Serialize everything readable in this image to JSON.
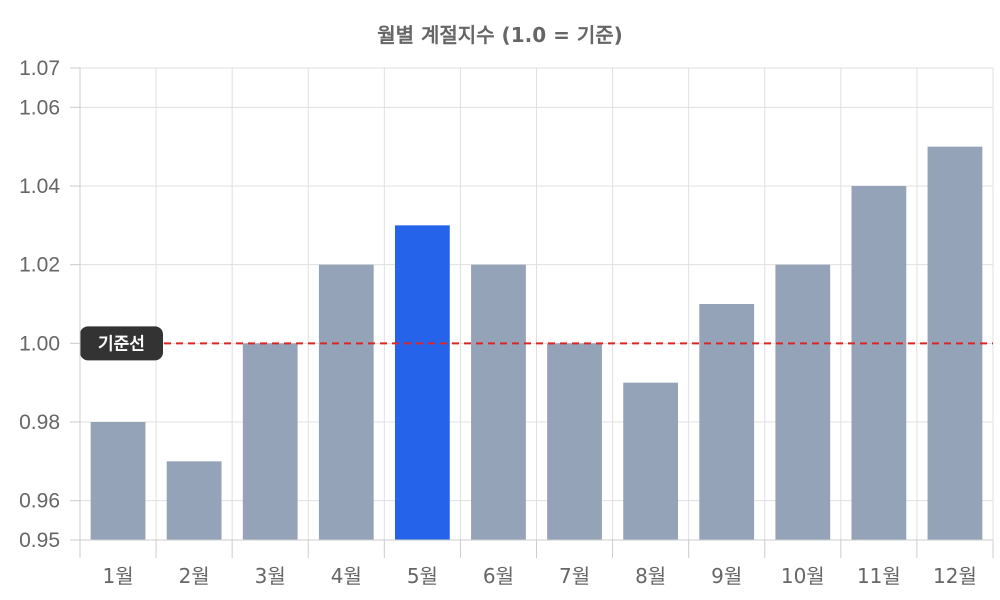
{
  "chart_data": {
    "type": "bar",
    "title": "월별 계절지수 (1.0 = 기준)",
    "xlabel": "",
    "ylabel": "",
    "categories": [
      "1월",
      "2월",
      "3월",
      "4월",
      "5월",
      "6월",
      "7월",
      "8월",
      "9월",
      "10월",
      "11월",
      "12월"
    ],
    "values": [
      0.98,
      0.97,
      1.0,
      1.02,
      1.03,
      1.02,
      1.0,
      0.99,
      1.01,
      1.02,
      1.04,
      1.05
    ],
    "ylim": [
      0.95,
      1.07
    ],
    "yticks": [
      "1.07",
      "1.06",
      "1.04",
      "1.02",
      "1.00",
      "0.98",
      "0.96",
      "0.95"
    ],
    "highlight_index": 4,
    "grid": true,
    "colors": {
      "bar": "#94a3b8",
      "highlight": "#2563eb",
      "reference_line": "#dc2626",
      "annotation_bg": "#333333"
    },
    "reference_line": {
      "value": 1.0,
      "label": "기준선",
      "style": "dashed"
    }
  }
}
